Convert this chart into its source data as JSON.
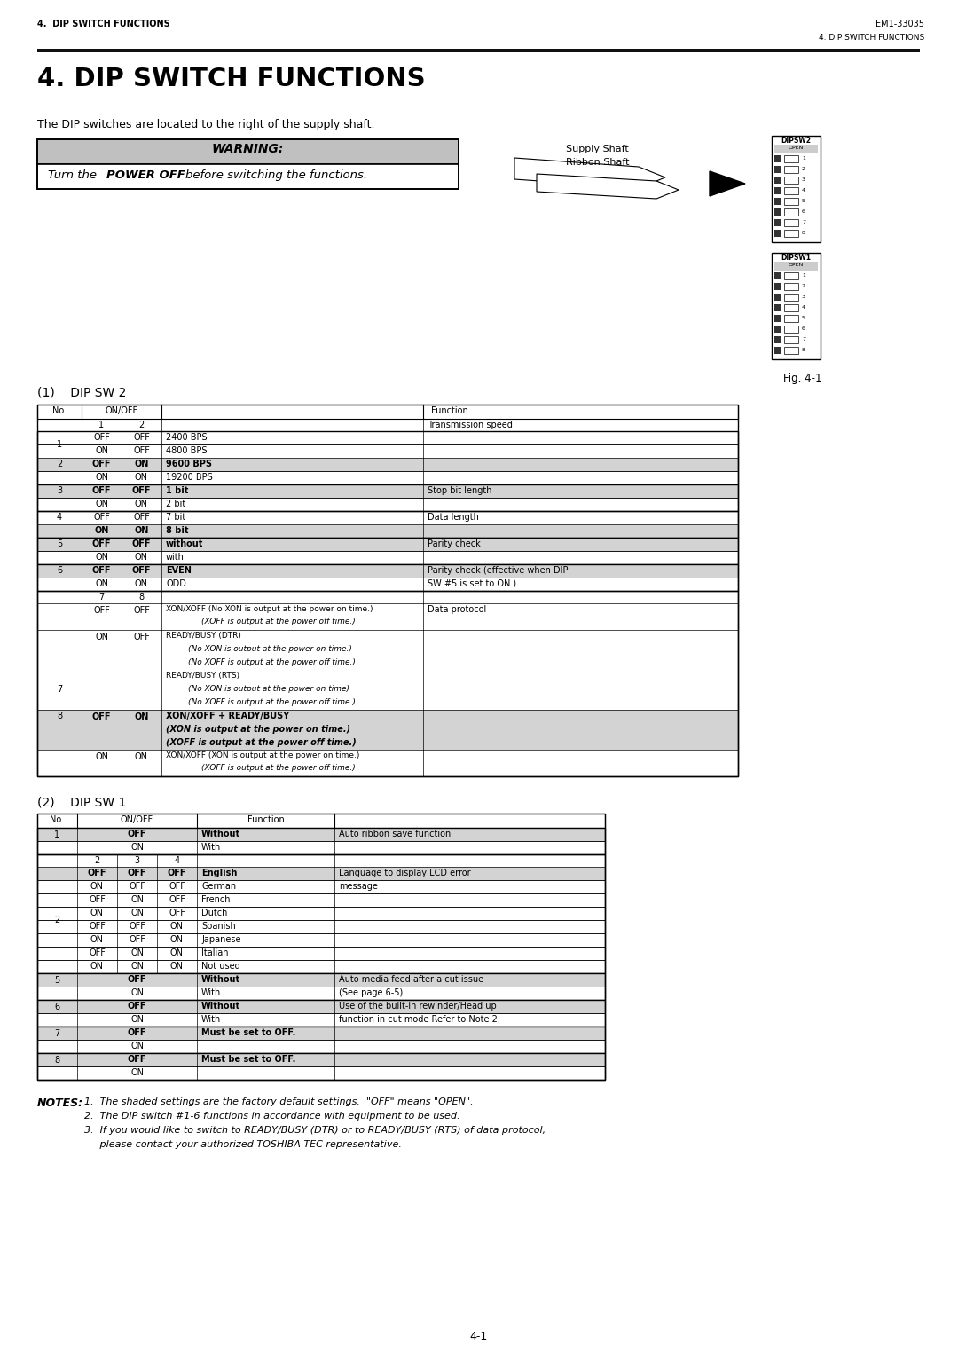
{
  "header_left": "4.  DIP SWITCH FUNCTIONS",
  "header_right": "EM1-33035",
  "header_right2": "4. DIP SWITCH FUNCTIONS",
  "title": "4. DIP SWITCH FUNCTIONS",
  "intro_text": "The DIP switches are located to the right of the supply shaft.",
  "warning_title": "WARNING:",
  "warning_text_1": "Turn the ",
  "warning_text_bold": "POWER OFF",
  "warning_text_2": " before switching the functions.",
  "dipsw2_label": "DIPSW2",
  "dipsw1_label": "DIPSW1",
  "open_label": "OPEN",
  "fig_label": "Fig. 4-1",
  "section1_title": "(1)    DIP SW 2",
  "section2_title": "(2)    DIP SW 1",
  "notes_title": "NOTES:",
  "note1": "1.  The shaded settings are the factory default settings.  \"OFF\" means \"OPEN\".",
  "note2": "2.  The DIP switch #1-6 functions in accordance with equipment to be used.",
  "note3": "3.  If you would like to switch to READY/BUSY (DTR) or to READY/BUSY (RTS) of data protocol,",
  "note4": "     please contact your authorized TOSHIBA TEC representative.",
  "page_num": "4-1",
  "bg_color": "#ffffff",
  "gray_bg": "#cccccc",
  "light_gray": "#d3d3d3",
  "dark_gray": "#b0b0b0"
}
